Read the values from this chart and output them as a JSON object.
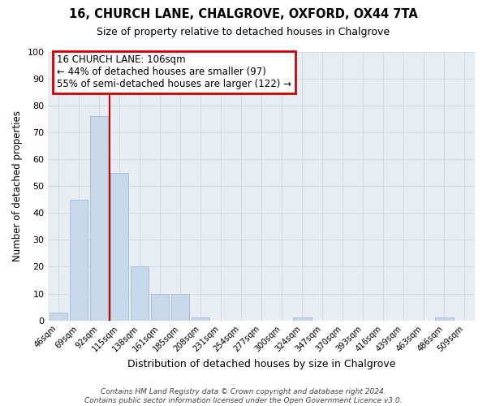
{
  "title": "16, CHURCH LANE, CHALGROVE, OXFORD, OX44 7TA",
  "subtitle": "Size of property relative to detached houses in Chalgrove",
  "xlabel": "Distribution of detached houses by size in Chalgrove",
  "ylabel": "Number of detached properties",
  "footer_line1": "Contains HM Land Registry data © Crown copyright and database right 2024.",
  "footer_line2": "Contains public sector information licensed under the Open Government Licence v3.0.",
  "bin_labels": [
    "46sqm",
    "69sqm",
    "92sqm",
    "115sqm",
    "138sqm",
    "161sqm",
    "185sqm",
    "208sqm",
    "231sqm",
    "254sqm",
    "277sqm",
    "300sqm",
    "324sqm",
    "347sqm",
    "370sqm",
    "393sqm",
    "416sqm",
    "439sqm",
    "463sqm",
    "486sqm",
    "509sqm"
  ],
  "bar_values": [
    3,
    45,
    76,
    55,
    20,
    10,
    10,
    1,
    0,
    0,
    0,
    0,
    1,
    0,
    0,
    0,
    0,
    0,
    0,
    1,
    0
  ],
  "bar_color": "#c8d8eb",
  "bar_edgecolor": "#a8c0d8",
  "red_line_index": 2.5,
  "annotation_title": "16 CHURCH LANE: 106sqm",
  "annotation_line1": "← 44% of detached houses are smaller (97)",
  "annotation_line2": "55% of semi-detached houses are larger (122) →",
  "annotation_box_color": "#cc0000",
  "ylim": [
    0,
    100
  ],
  "yticks": [
    0,
    10,
    20,
    30,
    40,
    50,
    60,
    70,
    80,
    90,
    100
  ],
  "ax_bg_color": "#e8edf4",
  "background_color": "#ffffff",
  "grid_color": "#d0d8e0"
}
